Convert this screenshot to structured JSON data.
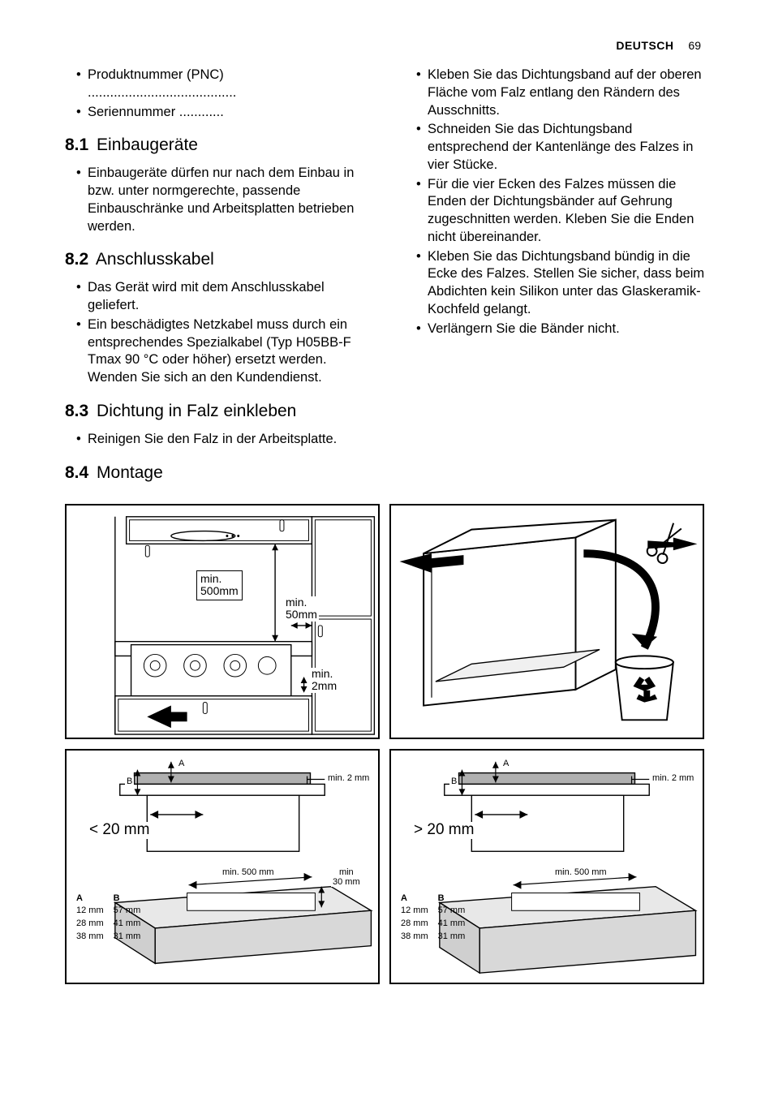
{
  "header": {
    "lang": "DEUTSCH",
    "page": "69"
  },
  "left": {
    "intro_bullets": [
      "Produktnummer (PNC) ........................................",
      "Seriennummer ............"
    ],
    "s81": {
      "num": "8.1",
      "title": "Einbaugeräte",
      "bullets": [
        "Einbaugeräte dürfen nur nach dem Einbau in bzw. unter normgerechte, passende Einbauschränke und Arbeitsplatten betrieben werden."
      ]
    },
    "s82": {
      "num": "8.2",
      "title": "Anschlusskabel",
      "bullets": [
        "Das Gerät wird mit dem Anschlusskabel geliefert.",
        "Ein beschädigtes Netzkabel muss durch ein entsprechendes Spezialkabel (Typ H05BB-F Tmax 90 °C oder höher) ersetzt werden. Wenden Sie sich an den Kundendienst."
      ]
    },
    "s83": {
      "num": "8.3",
      "title": "Dichtung in Falz einkleben",
      "bullets": [
        "Reinigen Sie den Falz in der Arbeitsplatte."
      ]
    },
    "s84": {
      "num": "8.4",
      "title": "Montage"
    }
  },
  "right": {
    "bullets": [
      "Kleben Sie das Dichtungsband auf der oberen Fläche vom Falz entlang den Rändern des Ausschnitts.",
      "Schneiden Sie das Dichtungsband entsprechend der Kantenlänge des Falzes in vier Stücke.",
      "Für die vier Ecken des Falzes müssen die Enden der Dichtungsbänder auf Gehrung zugeschnitten werden. Kleben Sie die Enden nicht übereinander.",
      "Kleben Sie das Dichtungsband bündig in die Ecke des Falzes. Stellen Sie sicher, dass beim Abdichten kein Silikon unter das Glaskeramik-Kochfeld gelangt.",
      "Verlängern Sie die Bänder nicht."
    ]
  },
  "diagrams": {
    "d1": {
      "min_top": "min.\n500mm",
      "min_side": "min.\n50mm",
      "min_gap": "min.\n2mm"
    },
    "d3": {
      "title": "< 20 mm",
      "min2mm": "min. 2 mm",
      "min500": "min. 500 mm",
      "min30": "min\n30 mm",
      "A": "A",
      "B": "B",
      "ab_rows": [
        [
          "12 mm",
          "57 mm"
        ],
        [
          "28 mm",
          "41 mm"
        ],
        [
          "38 mm",
          "31 mm"
        ]
      ]
    },
    "d4": {
      "title": "> 20 mm",
      "min2mm": "min. 2 mm",
      "min500": "min. 500 mm",
      "A": "A",
      "B": "B",
      "ab_rows": [
        [
          "12 mm",
          "57 mm"
        ],
        [
          "28 mm",
          "41 mm"
        ],
        [
          "38 mm",
          "31 mm"
        ]
      ]
    }
  }
}
